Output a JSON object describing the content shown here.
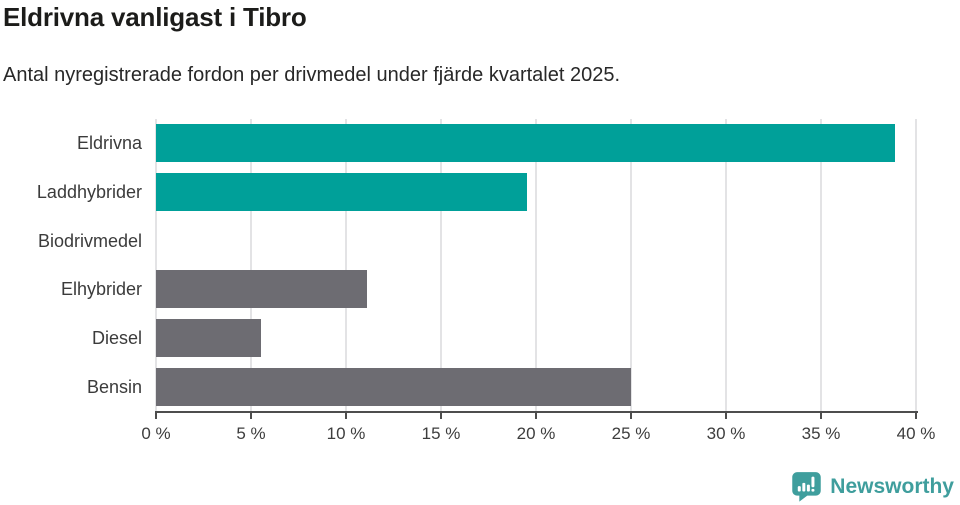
{
  "title": "Eldrivna vanligast i Tibro",
  "subtitle": "Antal nyregistrerade fordon per drivmedel under fjärde kvartalet 2025.",
  "footer": {
    "brand": "Newsworthy"
  },
  "colors": {
    "highlight_teal": "#00a099",
    "neutral_gray": "#6d6c72",
    "gridline": "#e3e3e5",
    "axis": "#4d4d4d",
    "title_text": "#1c1c1a",
    "label_text": "#3b3b3b",
    "logo_teal": "#3f9e9d"
  },
  "chart_data": {
    "type": "bar",
    "orientation": "horizontal",
    "title": "Eldrivna vanligast i Tibro",
    "subtitle": "Antal nyregistrerade fordon per drivmedel under fjärde kvartalet 2025.",
    "categories": [
      "Eldrivna",
      "Laddhybrider",
      "Biodrivmedel",
      "Elhybrider",
      "Diesel",
      "Bensin"
    ],
    "values": [
      38.9,
      19.5,
      0,
      11.1,
      5.5,
      25
    ],
    "unit": "%",
    "bar_colors": [
      "#00a099",
      "#00a099",
      "#00a099",
      "#6d6c72",
      "#6d6c72",
      "#6d6c72"
    ],
    "xlim": [
      0,
      40
    ],
    "x_tick_values": [
      0,
      5,
      10,
      15,
      20,
      25,
      30,
      35,
      40
    ],
    "x_ticks": [
      "0 %",
      "5 %",
      "10 %",
      "15 %",
      "20 %",
      "25 %",
      "30 %",
      "35 %",
      "40 %"
    ],
    "grid": true,
    "legend": false,
    "value_labels": false
  }
}
